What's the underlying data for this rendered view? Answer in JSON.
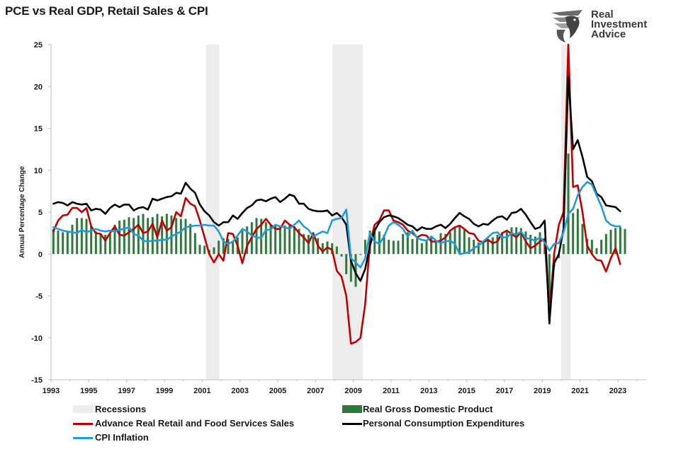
{
  "title": "PCE vs Real GDP, Retail Sales & CPI",
  "logo": {
    "line1": "Real",
    "line2": "Investment",
    "line3": "Advice"
  },
  "colors": {
    "gdp": "#2f7a3b",
    "retail": "#c00000",
    "pce": "#000000",
    "cpi": "#1f9bd7",
    "recession": "#ececec"
  },
  "chart_data": {
    "type": "line",
    "title": "PCE vs Real GDP, Retail Sales & CPI",
    "ylabel": "Annual Percentage Change",
    "xlabel": "",
    "ylim": [
      -15,
      25
    ],
    "xlim": [
      1993,
      2024.5
    ],
    "yticks": [
      -15,
      -10,
      -5,
      0,
      5,
      10,
      15,
      20,
      25
    ],
    "xticks": [
      "1993",
      "1995",
      "1997",
      "1999",
      "2001",
      "2003",
      "2005",
      "2007",
      "2009",
      "2011",
      "2013",
      "2015",
      "2017",
      "2019",
      "2021",
      "2023"
    ],
    "grid": false,
    "legend_position": "bottom",
    "recessions": [
      [
        2001.2,
        2001.9
      ],
      [
        2007.9,
        2009.5
      ],
      [
        2020.0,
        2020.5
      ]
    ],
    "quarters_start": 1993.0,
    "quarter_step": 0.25,
    "series": [
      {
        "name": "Real Gross Domestic Product",
        "kind": "bar",
        "color": "#2f7a3b",
        "values": [
          3.0,
          2.8,
          2.6,
          2.7,
          3.5,
          4.3,
          4.3,
          4.2,
          3.3,
          2.7,
          2.4,
          2.3,
          2.4,
          3.5,
          4.0,
          4.1,
          4.4,
          4.3,
          4.6,
          4.8,
          4.3,
          4.4,
          4.8,
          4.5,
          4.8,
          4.6,
          4.3,
          4.2,
          4.2,
          3.6,
          2.5,
          1.1,
          1.0,
          0.5,
          0.8,
          1.6,
          1.9,
          1.8,
          1.5,
          2.0,
          2.8,
          3.3,
          3.8,
          4.3,
          4.2,
          3.8,
          3.5,
          3.4,
          3.3,
          3.4,
          3.4,
          3.3,
          3.0,
          2.4,
          2.3,
          2.6,
          1.9,
          1.3,
          1.5,
          1.3,
          0.9,
          -0.3,
          -2.4,
          -3.3,
          -3.9,
          -0.1,
          1.7,
          2.8,
          3.2,
          2.7,
          2.3,
          1.7,
          1.6,
          1.6,
          2.4,
          2.6,
          1.8,
          2.1,
          1.3,
          1.6,
          1.9,
          1.6,
          2.5,
          2.4,
          2.6,
          3.2,
          3.4,
          3.0,
          2.0,
          1.7,
          1.4,
          1.6,
          1.8,
          2.0,
          2.3,
          2.6,
          2.8,
          3.2,
          3.2,
          3.1,
          2.7,
          2.3,
          2.1,
          2.6,
          1.8,
          -8.4,
          -1.5,
          -0.5,
          1.2,
          12.0,
          4.9,
          5.4,
          3.6,
          1.8,
          1.7,
          0.7,
          1.7,
          2.4,
          2.9,
          3.1,
          3.2,
          3.0
        ]
      },
      {
        "name": "Advance Real Retail and Food Services Sales",
        "kind": "line",
        "color": "#c00000",
        "values": [
          2.7,
          4.0,
          4.6,
          4.7,
          5.5,
          5.5,
          5.0,
          5.5,
          3.3,
          2.5,
          2.4,
          1.6,
          2.5,
          3.3,
          2.3,
          2.2,
          2.6,
          3.0,
          3.5,
          2.5,
          2.7,
          3.6,
          2.0,
          4.0,
          2.8,
          3.2,
          5.0,
          4.5,
          6.7,
          6.0,
          5.7,
          4.0,
          2.0,
          0.0,
          -1.0,
          0.0,
          -0.8,
          2.5,
          2.4,
          1.0,
          -1.1,
          1.0,
          2.0,
          3.0,
          3.5,
          4.2,
          3.5,
          3.0,
          3.0,
          4.0,
          3.5,
          3.2,
          2.5,
          2.0,
          1.3,
          2.5,
          1.0,
          0.3,
          0.8,
          0.5,
          -2.0,
          -2.7,
          -5.0,
          -10.7,
          -10.5,
          -10.0,
          -6.0,
          1.2,
          3.5,
          4.0,
          5.2,
          5.2,
          4.0,
          3.8,
          3.5,
          2.8,
          2.5,
          2.0,
          2.3,
          2.2,
          1.5,
          1.5,
          1.6,
          2.0,
          2.8,
          3.2,
          3.4,
          3.0,
          2.5,
          2.4,
          1.6,
          1.4,
          1.7,
          1.3,
          1.5,
          2.5,
          2.8,
          2.4,
          2.0,
          2.6,
          1.5,
          0.7,
          1.0,
          1.5,
          1.8,
          -7.0,
          0.0,
          3.5,
          5.0,
          26.5,
          8.0,
          8.2,
          5.0,
          1.0,
          0.0,
          -0.7,
          -0.8,
          -2.1,
          -0.5,
          0.7,
          -1.2
        ]
      },
      {
        "name": "Personal Consumption Expenditures",
        "kind": "line",
        "color": "#000000",
        "values": [
          6.0,
          6.2,
          6.1,
          5.8,
          6.2,
          6.0,
          5.9,
          6.0,
          5.2,
          5.4,
          5.3,
          4.8,
          5.5,
          5.9,
          5.6,
          5.9,
          5.9,
          5.2,
          5.5,
          5.6,
          5.3,
          6.6,
          6.4,
          6.6,
          6.8,
          6.9,
          7.3,
          7.2,
          8.5,
          7.8,
          7.3,
          5.9,
          5.1,
          4.6,
          3.8,
          3.4,
          3.8,
          3.8,
          4.6,
          4.2,
          4.9,
          5.5,
          5.8,
          6.4,
          6.5,
          6.3,
          6.6,
          6.8,
          6.2,
          6.6,
          7.1,
          6.9,
          6.0,
          6.0,
          5.4,
          5.2,
          5.1,
          5.1,
          5.2,
          4.6,
          4.9,
          4.4,
          3.5,
          -0.8,
          -2.3,
          -3.2,
          -1.8,
          1.0,
          2.8,
          3.8,
          4.4,
          4.6,
          4.5,
          4.3,
          3.9,
          3.5,
          3.3,
          2.8,
          3.2,
          3.0,
          3.0,
          3.3,
          3.5,
          3.1,
          3.6,
          4.3,
          4.9,
          4.5,
          4.2,
          3.6,
          3.3,
          3.6,
          3.5,
          4.0,
          4.4,
          4.5,
          4.1,
          4.9,
          5.0,
          5.4,
          4.7,
          3.8,
          3.0,
          3.2,
          4.0,
          -8.2,
          -1.1,
          0.0,
          3.0,
          21.2,
          12.5,
          13.6,
          11.6,
          9.2,
          8.7,
          7.2,
          6.8,
          5.8,
          5.7,
          5.6,
          5.1
        ]
      },
      {
        "name": "CPI Inflation",
        "kind": "line",
        "color": "#1f9bd7",
        "values": [
          3.2,
          3.0,
          2.8,
          2.7,
          2.6,
          2.5,
          2.9,
          2.6,
          2.8,
          3.0,
          2.8,
          2.7,
          2.8,
          2.7,
          2.9,
          3.0,
          3.2,
          2.4,
          2.2,
          1.6,
          1.5,
          1.6,
          1.6,
          1.7,
          1.7,
          2.1,
          2.4,
          2.7,
          3.2,
          3.3,
          3.4,
          3.4,
          3.5,
          3.4,
          3.4,
          2.7,
          1.5,
          1.2,
          1.5,
          2.2,
          3.0,
          2.7,
          2.2,
          2.0,
          1.9,
          2.9,
          2.9,
          3.5,
          3.3,
          3.2,
          3.0,
          3.5,
          4.0,
          3.3,
          2.9,
          2.1,
          2.4,
          2.7,
          2.5,
          4.0,
          4.2,
          4.3,
          5.3,
          -0.5,
          -1.0,
          -1.6,
          -0.5,
          2.5,
          1.5,
          1.2,
          2.1,
          3.4,
          3.8,
          3.5,
          3.0,
          2.1,
          2.8,
          1.9,
          1.7,
          1.6,
          2.1,
          1.6,
          1.3,
          1.5,
          1.6,
          1.2,
          0.0,
          0.1,
          0.2,
          0.7,
          1.0,
          1.5,
          2.0,
          2.5,
          2.6,
          2.0,
          2.0,
          2.5,
          2.3,
          2.7,
          1.9,
          1.8,
          1.6,
          2.0,
          1.4,
          0.4,
          1.2,
          1.3,
          2.6,
          4.8,
          5.4,
          7.0,
          8.0,
          8.6,
          8.3,
          7.0,
          5.7,
          4.0,
          3.5,
          3.3,
          3.3
        ]
      }
    ]
  }
}
